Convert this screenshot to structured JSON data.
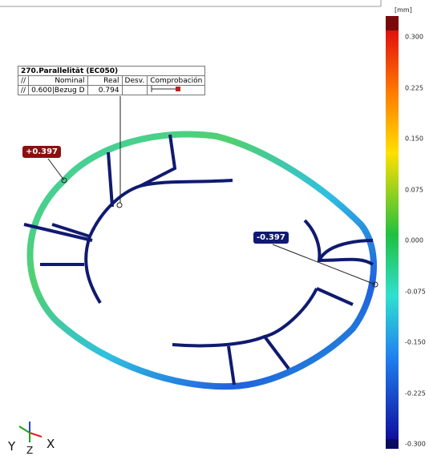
{
  "colorbar": {
    "unit": "[mm]",
    "ticks": [
      "0.300",
      "0.225",
      "0.150",
      "0.075",
      "0.000",
      "-0.075",
      "-0.150",
      "-0.225",
      "-0.300"
    ]
  },
  "table": {
    "title": "270.Parallelität (EC050)",
    "header": [
      "//",
      "Nominal",
      "Real",
      "Desv.",
      "Comprobación"
    ],
    "row": [
      "//",
      "0.600",
      "Bezug D",
      "0.794"
    ]
  },
  "labels": {
    "max": "+0.397",
    "min": "-0.397"
  },
  "triad": [
    "Y",
    "Z",
    "X"
  ]
}
